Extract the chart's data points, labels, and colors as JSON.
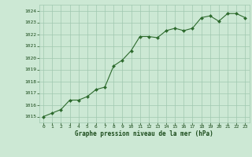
{
  "x": [
    0,
    1,
    2,
    3,
    4,
    5,
    6,
    7,
    8,
    9,
    10,
    11,
    12,
    13,
    14,
    15,
    16,
    17,
    18,
    19,
    20,
    21,
    22,
    23
  ],
  "y": [
    1015.0,
    1015.3,
    1015.6,
    1016.4,
    1016.4,
    1016.7,
    1017.3,
    1017.5,
    1019.3,
    1019.8,
    1020.6,
    1021.8,
    1021.8,
    1021.7,
    1022.3,
    1022.5,
    1022.3,
    1022.5,
    1023.4,
    1023.55,
    1023.1,
    1023.75,
    1023.75,
    1023.4
  ],
  "line_color": "#2d6a2d",
  "marker_color": "#2d6a2d",
  "bg_color": "#cce8d4",
  "grid_color": "#a0c8b0",
  "text_color": "#1a4a1a",
  "xlabel": "Graphe pression niveau de la mer (hPa)",
  "ylim": [
    1014.5,
    1024.5
  ],
  "xlim": [
    -0.5,
    23.5
  ],
  "yticks": [
    1015,
    1016,
    1017,
    1018,
    1019,
    1020,
    1021,
    1022,
    1023,
    1024
  ],
  "xticks": [
    0,
    1,
    2,
    3,
    4,
    5,
    6,
    7,
    8,
    9,
    10,
    11,
    12,
    13,
    14,
    15,
    16,
    17,
    18,
    19,
    20,
    21,
    22,
    23
  ]
}
